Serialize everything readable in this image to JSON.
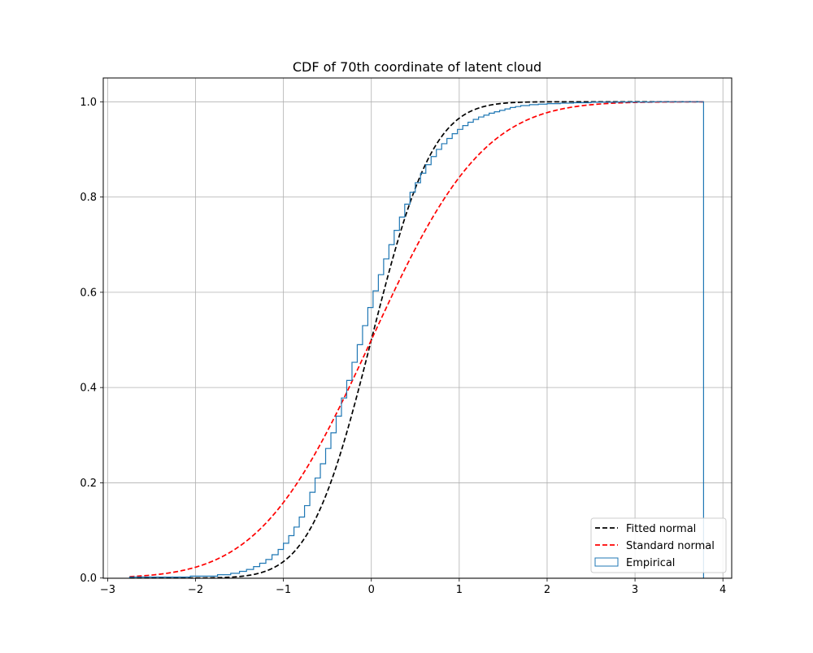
{
  "chart_data": {
    "type": "line",
    "title": "CDF of 70th coordinate of latent cloud",
    "xlabel": "",
    "ylabel": "",
    "xlim": [
      -3.05,
      4.1
    ],
    "ylim": [
      -0.0005,
      1.05
    ],
    "x_ticks": [
      -3,
      -2,
      -1,
      0,
      1,
      2,
      3,
      4
    ],
    "y_ticks": [
      0.0,
      0.2,
      0.4,
      0.6,
      0.8,
      1.0
    ],
    "x_tick_labels": [
      "−3",
      "−2",
      "−1",
      "0",
      "1",
      "2",
      "3",
      "4"
    ],
    "y_tick_labels": [
      "0.0",
      "0.2",
      "0.4",
      "0.6",
      "0.8",
      "1.0"
    ],
    "grid": true,
    "legend_position": "lower-right",
    "series": [
      {
        "name": "Fitted normal",
        "style": "dashed",
        "color": "#000000",
        "distribution": {
          "mean": 0.0,
          "std": 0.55
        },
        "x_range": [
          -2.75,
          3.78
        ]
      },
      {
        "name": "Standard normal",
        "style": "dashed",
        "color": "#ff0000",
        "distribution": {
          "mean": 0.0,
          "std": 1.0
        },
        "x_range": [
          -2.75,
          3.78
        ]
      },
      {
        "name": "Empirical",
        "style": "step",
        "color": "#1f77b4",
        "bin_edges": [
          -2.75,
          -2.06,
          -1.75,
          -1.6,
          -1.5,
          -1.42,
          -1.34,
          -1.27,
          -1.2,
          -1.13,
          -1.06,
          -1.0,
          -0.94,
          -0.88,
          -0.82,
          -0.76,
          -0.7,
          -0.64,
          -0.58,
          -0.52,
          -0.46,
          -0.4,
          -0.34,
          -0.28,
          -0.22,
          -0.16,
          -0.1,
          -0.04,
          0.02,
          0.08,
          0.14,
          0.2,
          0.26,
          0.32,
          0.38,
          0.44,
          0.5,
          0.56,
          0.62,
          0.68,
          0.74,
          0.8,
          0.86,
          0.92,
          0.98,
          1.04,
          1.1,
          1.16,
          1.22,
          1.28,
          1.34,
          1.4,
          1.46,
          1.52,
          1.58,
          1.64,
          1.7,
          1.8,
          1.9,
          2.0,
          2.15,
          2.3,
          2.5,
          2.8,
          3.2,
          3.78
        ],
        "cdf": [
          0.002,
          0.004,
          0.007,
          0.01,
          0.014,
          0.018,
          0.024,
          0.031,
          0.039,
          0.049,
          0.06,
          0.073,
          0.089,
          0.107,
          0.128,
          0.152,
          0.18,
          0.21,
          0.24,
          0.272,
          0.305,
          0.34,
          0.378,
          0.415,
          0.453,
          0.49,
          0.53,
          0.568,
          0.603,
          0.637,
          0.67,
          0.7,
          0.73,
          0.758,
          0.785,
          0.81,
          0.83,
          0.85,
          0.868,
          0.885,
          0.9,
          0.912,
          0.923,
          0.933,
          0.942,
          0.95,
          0.957,
          0.963,
          0.968,
          0.972,
          0.976,
          0.979,
          0.982,
          0.985,
          0.988,
          0.99,
          0.992,
          0.994,
          0.995,
          0.996,
          0.997,
          0.998,
          0.999,
          0.9995,
          1.0
        ]
      }
    ]
  }
}
